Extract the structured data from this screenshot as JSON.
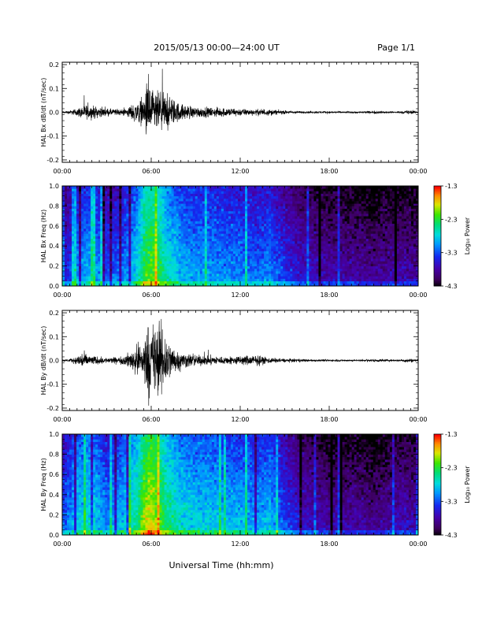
{
  "page": {
    "title": "2015/05/13  00:00—24:00 UT",
    "page_label": "Page 1/1",
    "xlabel": "Universal Time (hh:mm)"
  },
  "chart_data": [
    {
      "type": "line",
      "name": "bx-waveform",
      "ylabel": "HAL Bx dB/dt (nT/sec)",
      "ylim": [
        -0.21,
        0.21
      ],
      "yticks": [
        "0.2",
        "0.1",
        "0.0",
        "-0.1",
        "-0.2"
      ],
      "xlim": [
        0,
        24
      ],
      "xticks": [
        "00:00",
        "06:00",
        "12:00",
        "18:00",
        "00:00"
      ],
      "envelope": {
        "hours": [
          0,
          0.5,
          1,
          1.5,
          2,
          3,
          4,
          4.5,
          5,
          5.5,
          5.8,
          6,
          6.3,
          6.8,
          7.3,
          8,
          9,
          10,
          11,
          12,
          13,
          13.6,
          14,
          15,
          16,
          17,
          18,
          19,
          20,
          21,
          22,
          22.8,
          23.3,
          24
        ],
        "amplitude": [
          0.005,
          0.01,
          0.02,
          0.04,
          0.035,
          0.02,
          0.015,
          0.03,
          0.06,
          0.07,
          0.2,
          0.12,
          0.11,
          0.11,
          0.08,
          0.045,
          0.03,
          0.025,
          0.025,
          0.02,
          0.015,
          0.02,
          0.015,
          0.01,
          0.006,
          0.006,
          0.006,
          0.005,
          0.005,
          0.008,
          0.005,
          0.005,
          0.012,
          0.005
        ]
      }
    },
    {
      "type": "heatmap",
      "name": "bx-spectrogram",
      "ylabel": "HAL Bx Freq (Hz)",
      "ylim": [
        0,
        1.0
      ],
      "yticks": [
        "1.0",
        "0.8",
        "0.6",
        "0.4",
        "0.2",
        "0.0"
      ],
      "colorbar": {
        "label": "Log₁₀ Power",
        "range": [
          -4.3,
          -1.3
        ],
        "ticks": [
          "-1.3",
          "-2.3",
          "-3.3",
          "-4.3"
        ]
      },
      "xlim": [
        0,
        24
      ],
      "xticks": [
        "00:00",
        "06:00",
        "12:00",
        "18:00",
        "00:00"
      ],
      "mean_log_power_by_hour": {
        "hours": [
          0,
          1,
          2,
          3,
          4,
          5,
          5.5,
          6,
          6.5,
          7,
          8,
          9,
          10,
          11,
          12,
          13,
          14,
          15,
          16,
          17,
          18,
          19,
          20,
          21,
          22,
          23,
          24
        ],
        "power": [
          -3.8,
          -3.3,
          -3.1,
          -3.5,
          -3.4,
          -3.0,
          -2.5,
          -2.3,
          -2.5,
          -2.8,
          -3.1,
          -3.2,
          -3.2,
          -3.3,
          -3.3,
          -3.4,
          -3.3,
          -3.6,
          -3.8,
          -3.9,
          -4.0,
          -4.0,
          -4.0,
          -4.1,
          -4.0,
          -4.0,
          -4.0
        ]
      }
    },
    {
      "type": "line",
      "name": "by-waveform",
      "ylabel": "HAL By dB/dt (nT/sec)",
      "ylim": [
        -0.21,
        0.21
      ],
      "yticks": [
        "0.2",
        "0.1",
        "0.0",
        "-0.1",
        "-0.2"
      ],
      "xlim": [
        0,
        24
      ],
      "xticks": [
        "00:00",
        "06:00",
        "12:00",
        "18:00",
        "00:00"
      ],
      "envelope": {
        "hours": [
          0,
          0.5,
          1,
          1.3,
          1.6,
          2,
          3,
          4,
          4.5,
          5,
          5.5,
          5.8,
          6,
          6.3,
          6.8,
          7.3,
          8,
          9,
          10,
          11,
          12,
          13,
          13.6,
          14,
          15,
          16,
          17,
          18,
          19,
          20,
          21,
          22,
          22.8,
          23.3,
          24
        ],
        "amplitude": [
          0.005,
          0.008,
          0.02,
          0.05,
          0.035,
          0.025,
          0.015,
          0.02,
          0.04,
          0.08,
          0.12,
          0.2,
          0.2,
          0.2,
          0.19,
          0.09,
          0.045,
          0.03,
          0.025,
          0.02,
          0.025,
          0.03,
          0.02,
          0.015,
          0.01,
          0.008,
          0.006,
          0.006,
          0.005,
          0.005,
          0.008,
          0.005,
          0.005,
          0.012,
          0.005
        ]
      }
    },
    {
      "type": "heatmap",
      "name": "by-spectrogram",
      "ylabel": "HAL By Freq (Hz)",
      "ylim": [
        0,
        1.0
      ],
      "yticks": [
        "1.0",
        "0.8",
        "0.6",
        "0.4",
        "0.2",
        "0.0"
      ],
      "colorbar": {
        "label": "Log₁₀ Power",
        "range": [
          -4.3,
          -1.3
        ],
        "ticks": [
          "-1.3",
          "-2.3",
          "-3.3",
          "-4.3"
        ]
      },
      "xlim": [
        0,
        24
      ],
      "xticks": [
        "00:00",
        "06:00",
        "12:00",
        "18:00",
        "00:00"
      ],
      "mean_log_power_by_hour": {
        "hours": [
          0,
          1,
          2,
          3,
          4,
          5,
          5.5,
          6,
          6.5,
          7,
          8,
          9,
          10,
          11,
          12,
          13,
          14,
          15,
          16,
          17,
          18,
          19,
          20,
          21,
          22,
          23,
          24
        ],
        "power": [
          -3.5,
          -3.0,
          -2.9,
          -3.3,
          -3.1,
          -2.7,
          -2.2,
          -2.0,
          -2.3,
          -2.6,
          -2.9,
          -3.0,
          -3.0,
          -3.1,
          -3.1,
          -3.2,
          -3.1,
          -3.5,
          -3.8,
          -3.9,
          -4.0,
          -4.0,
          -4.0,
          -4.1,
          -4.0,
          -3.9,
          -4.0
        ]
      }
    }
  ]
}
